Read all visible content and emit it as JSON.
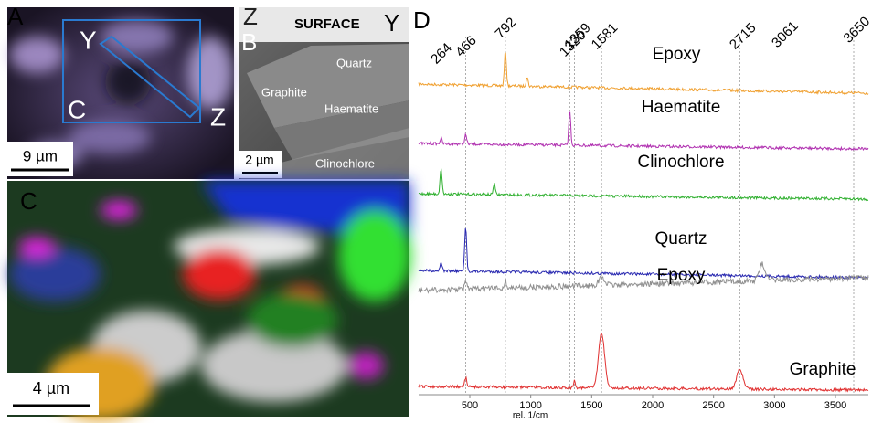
{
  "panels": {
    "a": {
      "label": "A",
      "points": [
        "Y",
        "C",
        "Z"
      ],
      "scale_bar": "9 µm"
    },
    "b": {
      "label": "B",
      "corner_left": "Z",
      "header": "SURFACE",
      "corner_right": "Y",
      "phases": [
        "Quartz",
        "Graphite",
        "Haematite",
        "Clinochlore"
      ],
      "scale_bar": "2 µm"
    },
    "c": {
      "label": "C",
      "scale_bar": "4 µm"
    },
    "d": {
      "label": "D",
      "x_label": "rel. 1/cm",
      "xlim": [
        80,
        3770
      ],
      "xticks": [
        500,
        1000,
        1500,
        2000,
        2500,
        3000,
        3500
      ],
      "peak_lines": [
        264,
        466,
        792,
        1320,
        1359,
        1581,
        2715,
        3061,
        3650
      ],
      "spectra": [
        {
          "name": "Epoxy",
          "color": "#f0a030",
          "peaks": [
            792,
            970
          ],
          "intensity": [
            38,
            10
          ]
        },
        {
          "name": "Haematite",
          "color": "#b030b0",
          "peaks": [
            264,
            466,
            1320
          ],
          "intensity": [
            6,
            10,
            38
          ]
        },
        {
          "name": "Clinochlore",
          "color": "#30b030",
          "peaks": [
            264,
            700
          ],
          "intensity": [
            28,
            12
          ]
        },
        {
          "name": "Quartz",
          "color": "#2828b0",
          "peaks": [
            264,
            466
          ],
          "intensity": [
            10,
            48
          ]
        },
        {
          "name": "Epoxy",
          "color": "#909090",
          "peaks": [
            466,
            792,
            1581,
            2900
          ],
          "intensity": [
            10,
            8,
            8,
            18
          ]
        },
        {
          "name": "Graphite",
          "color": "#e03030",
          "peaks": [
            466,
            1359,
            1581,
            2715
          ],
          "intensity": [
            10,
            8,
            60,
            22
          ]
        }
      ]
    }
  }
}
